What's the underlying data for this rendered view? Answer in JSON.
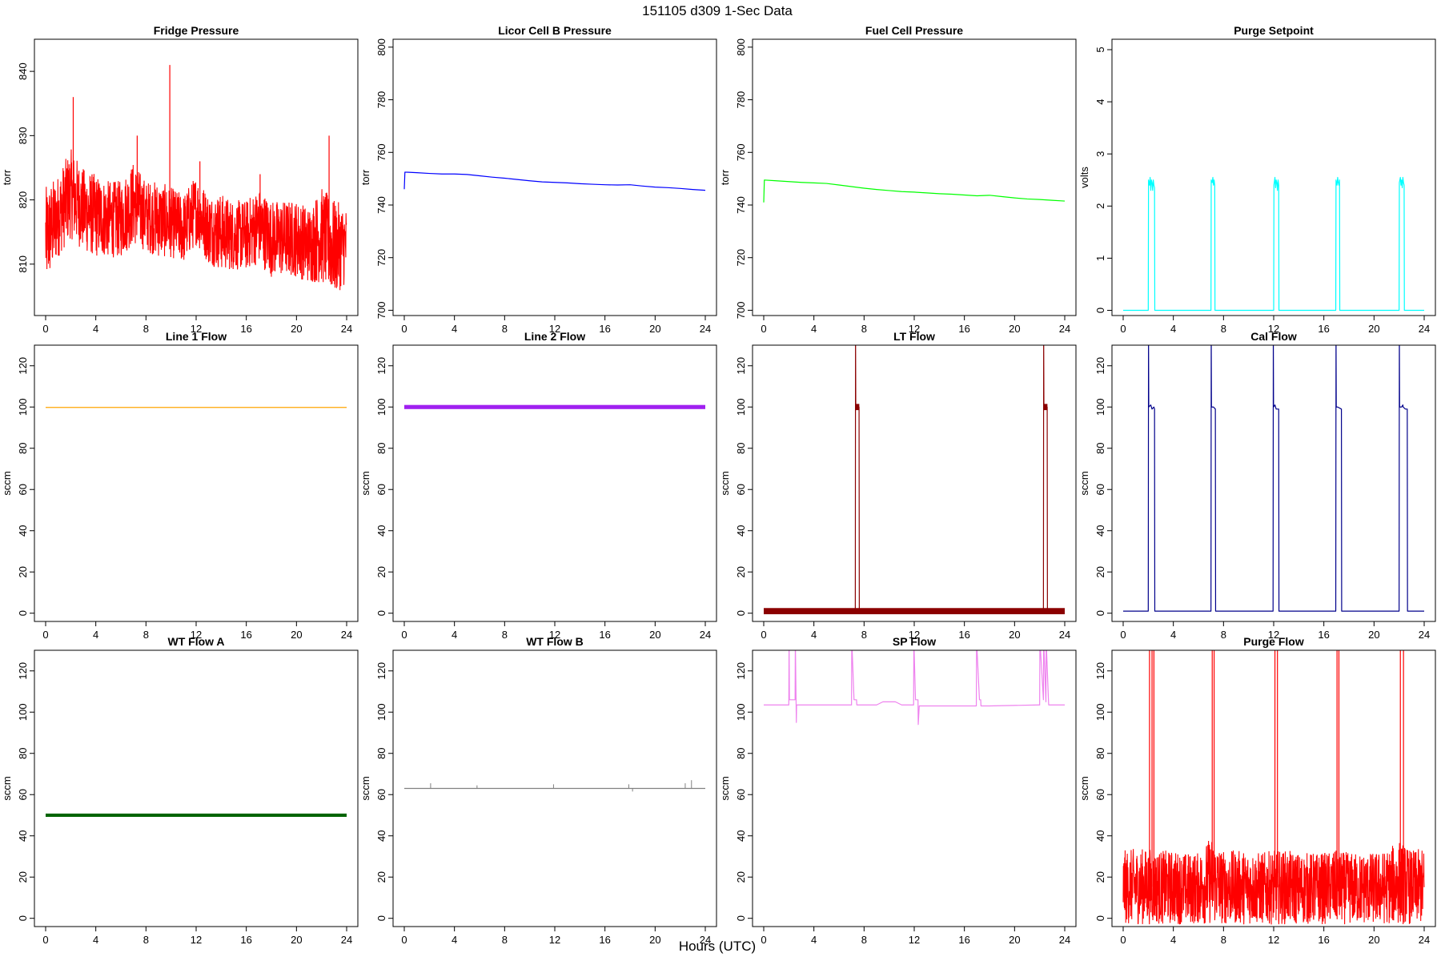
{
  "main_title": "151105    d309    1-Sec Data",
  "x_axis_title": "Hours (UTC)",
  "chart_data": [
    {
      "type": "line",
      "title": "Fridge Pressure",
      "ylabel": "torr",
      "xlim": [
        0,
        24
      ],
      "ylim": [
        802,
        845
      ],
      "xticks": [
        0,
        4,
        8,
        12,
        16,
        20,
        24
      ],
      "yticks": [
        810,
        820,
        830,
        840
      ],
      "color": "#ff0000",
      "style": "noisy",
      "series": [
        {
          "x": [
            0,
            1,
            2,
            3,
            4,
            5,
            6,
            7,
            8,
            9,
            10,
            11,
            12,
            13,
            14,
            15,
            16,
            17,
            18,
            19,
            20,
            21,
            22,
            23,
            24
          ],
          "low": [
            806,
            811,
            814,
            812,
            811,
            811,
            811,
            813,
            812,
            811,
            811,
            810,
            813,
            810,
            809,
            809,
            809,
            810,
            808,
            808,
            808,
            807,
            807,
            805,
            807
          ],
          "high": [
            822,
            824,
            828,
            825,
            824,
            823,
            823,
            826,
            823,
            823,
            822,
            821,
            824,
            821,
            821,
            820,
            820,
            822,
            820,
            820,
            820,
            819,
            822,
            820,
            819
          ],
          "spikes": [
            [
              2.2,
              836
            ],
            [
              7.3,
              830
            ],
            [
              9.9,
              841
            ],
            [
              12.3,
              826
            ],
            [
              17.1,
              824
            ],
            [
              22.6,
              830
            ]
          ]
        }
      ]
    },
    {
      "type": "line",
      "title": "Licor Cell B Pressure",
      "ylabel": "torr",
      "xlim": [
        0,
        24
      ],
      "ylim": [
        698,
        803
      ],
      "xticks": [
        0,
        4,
        8,
        12,
        16,
        20,
        24
      ],
      "yticks": [
        700,
        720,
        740,
        760,
        780,
        800
      ],
      "color": "#0000ff",
      "style": "line",
      "series": [
        {
          "x": [
            0,
            0.05,
            1,
            2,
            3,
            4,
            5,
            6,
            7,
            8,
            9,
            10,
            11,
            12,
            13,
            14,
            15,
            16,
            17,
            18,
            19,
            20,
            21,
            22,
            23,
            24
          ],
          "y": [
            746,
            752.5,
            752.3,
            752.0,
            751.8,
            751.8,
            751.6,
            751.1,
            750.6,
            750.2,
            749.7,
            749.2,
            748.8,
            748.6,
            748.4,
            748.1,
            747.9,
            747.7,
            747.6,
            747.7,
            747.2,
            746.8,
            746.6,
            746.3,
            745.9,
            745.6
          ]
        }
      ]
    },
    {
      "type": "line",
      "title": "Fuel Cell Pressure",
      "ylabel": "torr",
      "xlim": [
        0,
        24
      ],
      "ylim": [
        698,
        803
      ],
      "xticks": [
        0,
        4,
        8,
        12,
        16,
        20,
        24
      ],
      "yticks": [
        700,
        720,
        740,
        760,
        780,
        800
      ],
      "color": "#00ff00",
      "style": "line",
      "series": [
        {
          "x": [
            0,
            0.05,
            1,
            2,
            3,
            4,
            5,
            6,
            7,
            8,
            9,
            10,
            11,
            12,
            13,
            14,
            15,
            16,
            17,
            18,
            19,
            20,
            21,
            22,
            23,
            24
          ],
          "y": [
            741,
            749.5,
            749.2,
            748.9,
            748.6,
            748.4,
            748.2,
            747.6,
            747.0,
            746.4,
            745.9,
            745.5,
            745.1,
            744.9,
            744.6,
            744.3,
            744.1,
            743.8,
            743.5,
            743.7,
            743.2,
            742.7,
            742.3,
            742.1,
            741.8,
            741.5
          ]
        }
      ]
    },
    {
      "type": "line",
      "title": "Purge Setpoint",
      "ylabel": "volts",
      "xlim": [
        0,
        24
      ],
      "ylim": [
        -0.1,
        5.2
      ],
      "xticks": [
        0,
        4,
        8,
        12,
        16,
        20,
        24
      ],
      "yticks": [
        0,
        1,
        2,
        3,
        4,
        5
      ],
      "color": "#00ffff",
      "style": "line",
      "series": [
        {
          "x": [
            0,
            2.0,
            2.02,
            2.1,
            2.15,
            2.2,
            2.25,
            2.3,
            2.35,
            2.4,
            2.45,
            2.5,
            2.52,
            7.0,
            7.02,
            7.1,
            7.15,
            7.2,
            7.25,
            7.3,
            7.32,
            12.0,
            12.02,
            12.1,
            12.15,
            12.2,
            12.25,
            12.3,
            12.35,
            12.4,
            12.42,
            16.95,
            16.97,
            17.05,
            17.1,
            17.15,
            17.2,
            17.25,
            17.27,
            22.0,
            22.02,
            22.1,
            22.15,
            22.2,
            22.25,
            22.3,
            22.35,
            22.4,
            22.42,
            24
          ],
          "y": [
            0,
            0,
            2.5,
            2.4,
            2.55,
            2.3,
            2.5,
            2.45,
            2.3,
            2.5,
            2.4,
            2.35,
            0,
            0,
            2.5,
            2.45,
            2.55,
            2.4,
            2.5,
            2.4,
            0,
            0,
            2.4,
            2.55,
            2.35,
            2.5,
            2.45,
            2.3,
            2.5,
            2.4,
            0,
            0,
            2.5,
            2.4,
            2.55,
            2.45,
            2.4,
            2.5,
            0,
            0,
            2.45,
            2.55,
            2.4,
            2.5,
            2.35,
            2.55,
            2.45,
            2.4,
            0,
            0
          ]
        }
      ]
    },
    {
      "type": "line",
      "title": "Line 1 Flow",
      "ylabel": "sccm",
      "xlim": [
        0,
        24
      ],
      "ylim": [
        -4,
        130
      ],
      "xticks": [
        0,
        4,
        8,
        12,
        16,
        20,
        24
      ],
      "yticks": [
        0,
        20,
        40,
        60,
        80,
        100,
        120
      ],
      "color": "#ffa500",
      "style": "line",
      "series": [
        {
          "x": [
            0,
            24
          ],
          "y": [
            99.8,
            99.8
          ]
        }
      ]
    },
    {
      "type": "line",
      "title": "Line 2 Flow",
      "ylabel": "sccm",
      "xlim": [
        0,
        24
      ],
      "ylim": [
        -4,
        130
      ],
      "xticks": [
        0,
        4,
        8,
        12,
        16,
        20,
        24
      ],
      "yticks": [
        0,
        20,
        40,
        60,
        80,
        100,
        120
      ],
      "color": "#a020f0",
      "style": "band",
      "series": [
        {
          "x": [
            0,
            24
          ],
          "y": [
            100,
            100
          ],
          "band": [
            99,
            101
          ]
        }
      ]
    },
    {
      "type": "line",
      "title": "LT Flow",
      "ylabel": "sccm",
      "xlim": [
        0,
        24
      ],
      "ylim": [
        -4,
        130
      ],
      "xticks": [
        0,
        4,
        8,
        12,
        16,
        20,
        24
      ],
      "yticks": [
        0,
        20,
        40,
        60,
        80,
        100,
        120
      ],
      "color": "#8b0000",
      "style": "line",
      "series": [
        {
          "x": [
            0,
            7.3,
            7.32,
            7.34,
            7.6,
            7.62,
            22.3,
            22.32,
            22.34,
            22.6,
            22.62,
            24
          ],
          "y": [
            1,
            1,
            135,
            100,
            100,
            1,
            1,
            135,
            100,
            100,
            1,
            1
          ]
        }
      ],
      "bands": [
        [
          0,
          24,
          -0.5,
          2.5
        ],
        [
          7.32,
          7.62,
          98.5,
          101.5
        ],
        [
          22.32,
          22.62,
          98.5,
          101.5
        ]
      ]
    },
    {
      "type": "line",
      "title": "Cal Flow",
      "ylabel": "sccm",
      "xlim": [
        0,
        24
      ],
      "ylim": [
        -4,
        130
      ],
      "xticks": [
        0,
        4,
        8,
        12,
        16,
        20,
        24
      ],
      "yticks": [
        0,
        20,
        40,
        60,
        80,
        100,
        120
      ],
      "color": "#00008b",
      "style": "line",
      "series": [
        {
          "x": [
            0,
            2.0,
            2.02,
            2.04,
            2.2,
            2.3,
            2.45,
            2.5,
            2.52,
            7.0,
            7.02,
            7.04,
            7.2,
            7.35,
            7.37,
            11.95,
            11.97,
            11.99,
            12.1,
            12.2,
            12.4,
            12.42,
            16.95,
            16.97,
            16.99,
            17.1,
            17.4,
            17.42,
            22.0,
            22.02,
            22.04,
            22.2,
            22.3,
            22.32,
            22.5,
            22.65,
            22.67,
            24
          ],
          "y": [
            1,
            1,
            135,
            100,
            101,
            99,
            100,
            99,
            1,
            1,
            135,
            100,
            100,
            99,
            1,
            1,
            135,
            100,
            101,
            99,
            99,
            1,
            1,
            135,
            100,
            100,
            99,
            1,
            1,
            135,
            100,
            100,
            101,
            100,
            99,
            99,
            1,
            1
          ]
        }
      ]
    },
    {
      "type": "line",
      "title": "WT Flow A",
      "ylabel": "sccm",
      "xlim": [
        0,
        24
      ],
      "ylim": [
        -4,
        130
      ],
      "xticks": [
        0,
        4,
        8,
        12,
        16,
        20,
        24
      ],
      "yticks": [
        0,
        20,
        40,
        60,
        80,
        100,
        120
      ],
      "color": "#006400",
      "style": "band",
      "series": [
        {
          "x": [
            0,
            24
          ],
          "y": [
            50,
            50
          ],
          "band": [
            49.2,
            50.8
          ]
        }
      ]
    },
    {
      "type": "line",
      "title": "WT Flow B",
      "ylabel": "sccm",
      "xlim": [
        0,
        24
      ],
      "ylim": [
        -4,
        130
      ],
      "xticks": [
        0,
        4,
        8,
        12,
        16,
        20,
        24
      ],
      "yticks": [
        0,
        20,
        40,
        60,
        80,
        100,
        120
      ],
      "color": "#808080",
      "style": "line",
      "series": [
        {
          "x": [
            0,
            24
          ],
          "y": [
            63,
            63
          ],
          "spikes": [
            [
              2.1,
              65.5
            ],
            [
              5.8,
              64.5
            ],
            [
              11.9,
              65
            ],
            [
              17.9,
              65
            ],
            [
              18.2,
              61.5
            ],
            [
              22.4,
              65.5
            ],
            [
              22.9,
              67
            ]
          ]
        }
      ]
    },
    {
      "type": "line",
      "title": "SP Flow",
      "ylabel": "sccm",
      "xlim": [
        0,
        24
      ],
      "ylim": [
        -4,
        130
      ],
      "xticks": [
        0,
        4,
        8,
        12,
        16,
        20,
        24
      ],
      "yticks": [
        0,
        20,
        40,
        60,
        80,
        100,
        120
      ],
      "color": "#ee82ee",
      "style": "line",
      "series": [
        {
          "x": [
            0,
            2.0,
            2.02,
            2.05,
            2.5,
            2.52,
            2.6,
            2.62,
            7.0,
            7.02,
            7.2,
            7.4,
            7.42,
            9.0,
            9.5,
            10.5,
            11.0,
            11.95,
            11.97,
            12.1,
            12.3,
            12.32,
            12.4,
            12.42,
            16.95,
            16.97,
            17.2,
            17.3,
            17.32,
            18.0,
            21.9,
            22.0,
            22.02,
            22.3,
            22.32,
            22.5,
            22.52,
            22.7,
            22.72,
            24
          ],
          "y": [
            103.5,
            103.5,
            135,
            106,
            106,
            135,
            95,
            103.5,
            103.5,
            135,
            106,
            106,
            103.5,
            103.5,
            105,
            105,
            103.5,
            103.5,
            135,
            106,
            106,
            94,
            103,
            103,
            103,
            135,
            106,
            106,
            103,
            103,
            103.5,
            103.5,
            135,
            106,
            135,
            105,
            135,
            106,
            103.5,
            103.5
          ]
        }
      ]
    },
    {
      "type": "line",
      "title": "Purge Flow",
      "ylabel": "sccm",
      "xlim": [
        0,
        24
      ],
      "ylim": [
        -4,
        130
      ],
      "xticks": [
        0,
        4,
        8,
        12,
        16,
        20,
        24
      ],
      "yticks": [
        0,
        20,
        40,
        60,
        80,
        100,
        120
      ],
      "color": "#ff0000",
      "style": "noisy",
      "series": [
        {
          "x": [
            0,
            1,
            2,
            3,
            4,
            5,
            6,
            7,
            8,
            9,
            10,
            11,
            12,
            13,
            14,
            15,
            16,
            17,
            18,
            19,
            20,
            21,
            22,
            23,
            24
          ],
          "low": [
            -3,
            -3,
            -3,
            -3,
            -3,
            -3,
            -3,
            -3,
            -3,
            -3,
            -3,
            -3,
            -3,
            -3,
            -3,
            -3,
            -3,
            -3,
            -3,
            -3,
            -3,
            -3,
            -3,
            -3,
            -3
          ],
          "high": [
            33,
            34,
            34,
            33,
            33,
            32,
            32,
            40,
            33,
            33,
            33,
            32,
            33,
            33,
            32,
            32,
            32,
            33,
            32,
            32,
            32,
            33,
            38,
            33,
            34
          ],
          "spikes": [
            [
              2.1,
              135
            ],
            [
              2.3,
              135
            ],
            [
              2.45,
              135
            ],
            [
              7.1,
              135
            ],
            [
              7.25,
              135
            ],
            [
              12.1,
              135
            ],
            [
              12.3,
              135
            ],
            [
              17.05,
              135
            ],
            [
              17.2,
              135
            ],
            [
              22.1,
              135
            ],
            [
              22.35,
              135
            ]
          ]
        }
      ]
    }
  ]
}
